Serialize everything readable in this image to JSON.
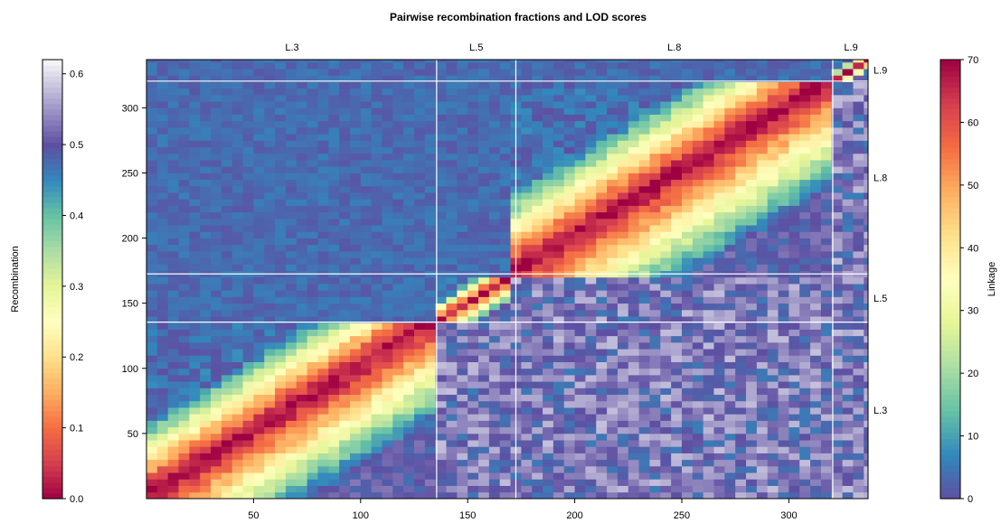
{
  "chart_data": {
    "type": "heatmap",
    "title": "Pairwise recombination fractions and LOD scores",
    "n_markers": 337,
    "groups": [
      {
        "name": "L.3",
        "start": 1,
        "end": 135
      },
      {
        "name": "L.5",
        "start": 136,
        "end": 172
      },
      {
        "name": "L.8",
        "start": 173,
        "end": 320
      },
      {
        "name": "L.9",
        "start": 321,
        "end": 337
      }
    ],
    "x_ticks": [
      "50",
      "100",
      "150",
      "200",
      "250",
      "300"
    ],
    "y_ticks": [
      "50",
      "100",
      "150",
      "200",
      "250",
      "300"
    ],
    "tick_values": [
      50,
      100,
      150,
      200,
      250,
      300
    ],
    "upper_triangle": "Recombination",
    "lower_triangle": "Linkage",
    "left_colorbar": {
      "label": "Recombination",
      "range": [
        0.0,
        0.62
      ],
      "ticks": [
        "0.0",
        "0.1",
        "0.2",
        "0.3",
        "0.4",
        "0.5",
        "0.6"
      ],
      "tick_values": [
        0.0,
        0.1,
        0.2,
        0.3,
        0.4,
        0.5,
        0.6
      ]
    },
    "right_colorbar": {
      "label": "Linkage",
      "range": [
        0,
        70
      ],
      "ticks": [
        "0",
        "10",
        "20",
        "30",
        "40",
        "50",
        "60",
        "70"
      ],
      "tick_values": [
        0,
        10,
        20,
        30,
        40,
        50,
        60,
        70
      ]
    },
    "palette": [
      "#9e0142",
      "#d53e4f",
      "#f46d43",
      "#fdae61",
      "#fee08b",
      "#ffffbf",
      "#e6f598",
      "#abdda4",
      "#66c2a5",
      "#3288bd",
      "#5e4fa2"
    ]
  }
}
